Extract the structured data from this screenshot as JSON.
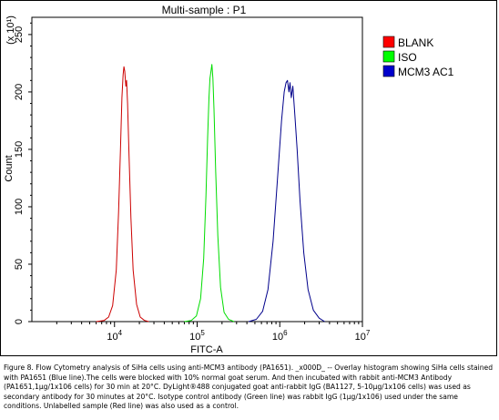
{
  "chart_data": {
    "type": "histogram",
    "title": "Multi-sample : P1",
    "xlabel": "FITC-A",
    "ylabel": "Count",
    "y_multiplier_label": "(x 10¹)",
    "x_scale": "log",
    "xlim": [
      1000,
      10000000
    ],
    "ylim": [
      0,
      265
    ],
    "x_tick_labels": [
      {
        "value": 10000,
        "base": "10",
        "exp": "4"
      },
      {
        "value": 100000,
        "base": "10",
        "exp": "5"
      },
      {
        "value": 1000000,
        "base": "10",
        "exp": "6"
      },
      {
        "value": 10000000,
        "base": "10",
        "exp": "7"
      }
    ],
    "y_ticks": [
      0,
      50,
      100,
      150,
      200,
      250
    ],
    "grid": false,
    "legend_position": "right",
    "series": [
      {
        "name": "BLANK",
        "color": "#cc0000",
        "legend_color": "#ff0000",
        "points": [
          [
            6000,
            0
          ],
          [
            7500,
            1
          ],
          [
            8500,
            4
          ],
          [
            9500,
            14
          ],
          [
            10500,
            45
          ],
          [
            11200,
            95
          ],
          [
            11800,
            150
          ],
          [
            12300,
            195
          ],
          [
            12700,
            215
          ],
          [
            13000,
            222
          ],
          [
            13300,
            218
          ],
          [
            13700,
            205
          ],
          [
            14000,
            210
          ],
          [
            14400,
            190
          ],
          [
            15000,
            145
          ],
          [
            15800,
            90
          ],
          [
            16800,
            45
          ],
          [
            18500,
            15
          ],
          [
            20500,
            4
          ],
          [
            23000,
            1
          ],
          [
            26000,
            0
          ]
        ]
      },
      {
        "name": "ISO",
        "color": "#00dd00",
        "legend_color": "#00ff00",
        "points": [
          [
            70000,
            0
          ],
          [
            85000,
            1
          ],
          [
            98000,
            5
          ],
          [
            110000,
            20
          ],
          [
            120000,
            55
          ],
          [
            128000,
            110
          ],
          [
            134000,
            160
          ],
          [
            139000,
            195
          ],
          [
            143000,
            212
          ],
          [
            147000,
            218
          ],
          [
            151000,
            224
          ],
          [
            155000,
            212
          ],
          [
            160000,
            185
          ],
          [
            168000,
            130
          ],
          [
            178000,
            75
          ],
          [
            192000,
            30
          ],
          [
            212000,
            8
          ],
          [
            240000,
            2
          ],
          [
            280000,
            0
          ]
        ]
      },
      {
        "name": "MCM3 AC1",
        "color": "#00008b",
        "legend_color": "#0000cc",
        "points": [
          [
            420000,
            0
          ],
          [
            520000,
            2
          ],
          [
            620000,
            9
          ],
          [
            720000,
            28
          ],
          [
            830000,
            70
          ],
          [
            940000,
            125
          ],
          [
            1050000,
            175
          ],
          [
            1130000,
            200
          ],
          [
            1190000,
            208
          ],
          [
            1240000,
            210
          ],
          [
            1290000,
            200
          ],
          [
            1330000,
            208
          ],
          [
            1380000,
            195
          ],
          [
            1440000,
            205
          ],
          [
            1520000,
            180
          ],
          [
            1620000,
            150
          ],
          [
            1760000,
            105
          ],
          [
            1950000,
            60
          ],
          [
            2200000,
            28
          ],
          [
            2550000,
            10
          ],
          [
            3000000,
            3
          ],
          [
            3500000,
            0
          ]
        ]
      }
    ]
  },
  "caption": "Figure 8. Flow Cytometry analysis of SiHa cells using anti-MCM3 antibody (PA1651). _x000D_ -- Overlay histogram showing SiHa cells stained with PA1651 (Blue line).The cells were blocked with 10% normal goat serum. And then incubated with rabbit anti-MCM3 Antibody (PA1651,1μg/1x106 cells) for 30 min at 20°C. DyLight®488 conjugated goat anti-rabbit IgG (BA1127, 5-10μg/1x106 cells) was used as secondary antibody for 30 minutes at 20°C. Isotype control antibody (Green line) was rabbit IgG (1μg/1x106) used under the same conditions. Unlabelled sample (Red line) was also used as a control."
}
